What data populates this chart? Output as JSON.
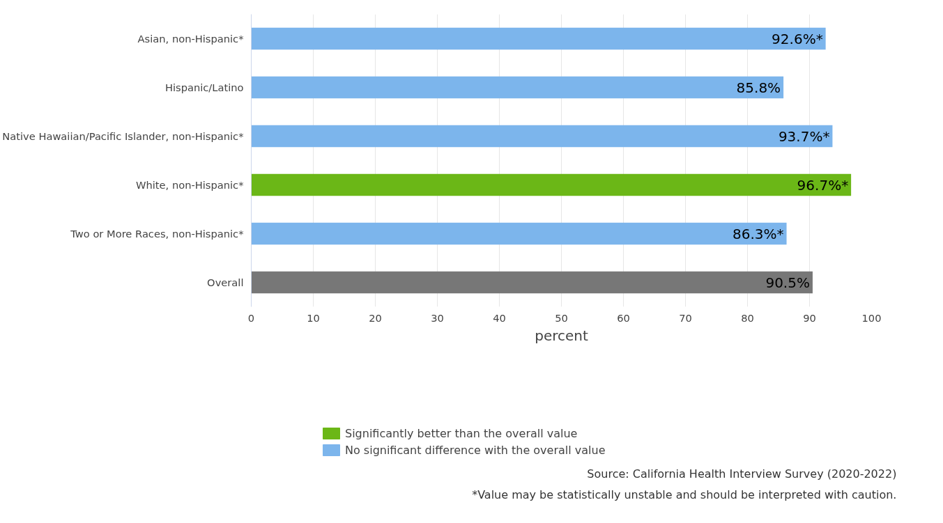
{
  "chart_data": {
    "type": "bar",
    "orientation": "horizontal",
    "xlabel": "percent",
    "categories": [
      "Asian, non-Hispanic*",
      "Hispanic/Latino",
      "Native Hawaiian/Pacific Islander, non-Hispanic*",
      "White, non-Hispanic*",
      "Two or More Races, non-Hispanic*",
      "Overall"
    ],
    "series": [
      {
        "name": "Significantly better than the overall value",
        "color": "#6bb717",
        "values": [
          null,
          null,
          null,
          96.7,
          null,
          null
        ]
      },
      {
        "name": "No significant difference with the overall value",
        "color": "#7cb5ec",
        "values": [
          92.6,
          85.8,
          93.7,
          null,
          86.3,
          null
        ]
      },
      {
        "color": "#777777",
        "values": [
          null,
          null,
          null,
          null,
          null,
          90.5
        ]
      }
    ],
    "value_labels": [
      "92.6%*",
      "85.8%",
      "93.7%*",
      "96.7%*",
      "86.3%*",
      "90.5%"
    ],
    "xlim": [
      0,
      100
    ],
    "xticks": [
      0,
      10,
      20,
      30,
      40,
      50,
      60,
      70,
      80,
      90,
      100
    ],
    "grid": "x",
    "legend": "bottom left",
    "annotations": [
      "Source: California Health Interview Survey (2020-2022)",
      "*Value may be statistically unstable and should be interpreted with caution."
    ]
  }
}
